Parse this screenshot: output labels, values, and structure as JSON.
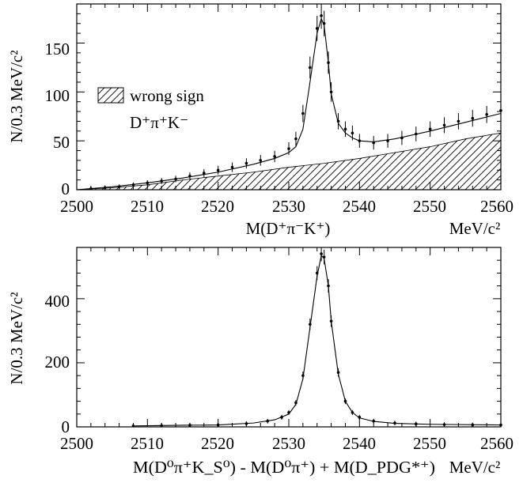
{
  "chart_data": [
    {
      "type": "scatter",
      "panel": "top",
      "xlim": [
        2500,
        2560
      ],
      "ylim": [
        0,
        190
      ],
      "x_ticks": [
        "2500",
        "2510",
        "2520",
        "2530",
        "2540",
        "2550",
        "2560"
      ],
      "y_ticks": [
        "0",
        "50",
        "100",
        "150"
      ],
      "ylabel": "N/0.3 MeV/c²",
      "xlabel": "M(D⁺π⁻K⁺)",
      "x_unit": "MeV/c²",
      "legend": {
        "swatch": "hatched",
        "line1": "wrong sign",
        "line2": "D⁺π⁺K⁻",
        "placement": "middle-left"
      },
      "series": [
        {
          "kind": "data-points",
          "x": [
            2502,
            2504,
            2506,
            2508,
            2510,
            2512,
            2514,
            2516,
            2518,
            2520,
            2522,
            2524,
            2526,
            2528,
            2530,
            2531,
            2532,
            2533,
            2534,
            2534.6,
            2535,
            2535.6,
            2536,
            2537,
            2538,
            2539,
            2540,
            2542,
            2544,
            2546,
            2548,
            2550,
            2552,
            2554,
            2556,
            2558,
            2560
          ],
          "y": [
            1,
            2,
            3,
            5,
            7,
            9,
            11,
            14,
            17,
            20,
            23,
            27,
            30,
            34,
            42,
            52,
            78,
            125,
            165,
            178,
            170,
            130,
            100,
            70,
            62,
            58,
            50,
            48,
            50,
            53,
            57,
            62,
            66,
            70,
            73,
            77,
            81
          ]
        },
        {
          "kind": "fit-curve",
          "x": [
            2500,
            2505,
            2510,
            2515,
            2520,
            2525,
            2528,
            2530,
            2531,
            2532,
            2533,
            2534,
            2534.6,
            2535,
            2535.6,
            2536,
            2537,
            2538,
            2539,
            2540,
            2542,
            2545,
            2550,
            2555,
            2560
          ],
          "y": [
            0,
            3,
            7,
            12,
            18,
            26,
            32,
            38,
            44,
            62,
            110,
            160,
            175,
            168,
            130,
            98,
            68,
            58,
            53,
            50,
            49,
            52,
            60,
            69,
            78
          ]
        },
        {
          "kind": "wrong-sign-histogram",
          "x": [
            2500,
            2505,
            2510,
            2515,
            2520,
            2525,
            2530,
            2535,
            2540,
            2545,
            2550,
            2555,
            2560
          ],
          "y": [
            0,
            2,
            5,
            10,
            14,
            18,
            23,
            27,
            32,
            38,
            44,
            52,
            58
          ]
        }
      ]
    },
    {
      "type": "scatter",
      "panel": "bottom",
      "xlim": [
        2500,
        2560
      ],
      "ylim": [
        0,
        560
      ],
      "x_ticks": [
        "2500",
        "2510",
        "2520",
        "2530",
        "2540",
        "2550",
        "2560"
      ],
      "y_ticks": [
        "0",
        "200",
        "400"
      ],
      "ylabel": "N/0.3 MeV/c²",
      "xlabel": "M(D⁰π⁺K_S⁰) - M(D⁰π⁺) + M(D_PDG*⁺)",
      "x_unit": "MeV/c²",
      "series": [
        {
          "kind": "data-points",
          "x": [
            2508,
            2512,
            2516,
            2520,
            2524,
            2527,
            2529,
            2530,
            2531,
            2532,
            2533,
            2534,
            2534.6,
            2535,
            2535.6,
            2536,
            2537,
            2538,
            2539,
            2540,
            2542,
            2545,
            2548,
            2552,
            2556,
            2560
          ],
          "y": [
            3,
            4,
            5,
            6,
            10,
            18,
            30,
            45,
            75,
            160,
            320,
            480,
            540,
            530,
            440,
            330,
            170,
            80,
            45,
            30,
            18,
            12,
            9,
            7,
            6,
            6
          ]
        },
        {
          "kind": "fit-curve",
          "x": [
            2508,
            2515,
            2520,
            2525,
            2528,
            2530,
            2531,
            2532,
            2533,
            2534,
            2534.6,
            2535,
            2535.6,
            2536,
            2537,
            2538,
            2539,
            2540,
            2542,
            2545,
            2550,
            2560
          ],
          "y": [
            3,
            5,
            6,
            12,
            22,
            40,
            70,
            150,
            310,
            470,
            535,
            525,
            440,
            330,
            165,
            80,
            45,
            28,
            17,
            11,
            8,
            6
          ]
        }
      ]
    }
  ]
}
